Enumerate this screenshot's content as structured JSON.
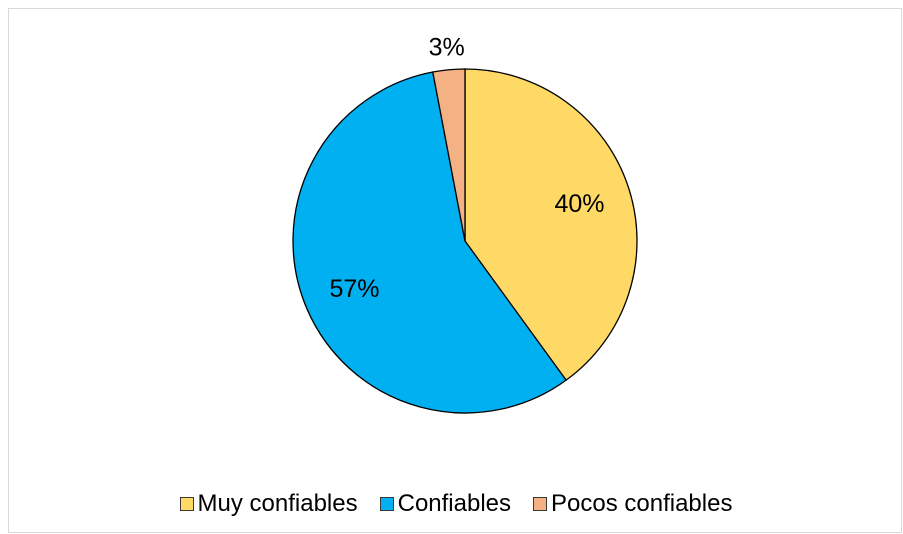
{
  "chart_data": {
    "type": "pie",
    "title": "",
    "series": [
      {
        "label": "Muy confiables",
        "value": 40,
        "display": "40%",
        "color": "#FFD966"
      },
      {
        "label": "Confiables",
        "value": 57,
        "display": "57%",
        "color": "#00B0F0"
      },
      {
        "label": "Pocos confiables",
        "value": 3,
        "display": "3%",
        "color": "#F4B183"
      }
    ],
    "start_angle": "top (12 o'clock), clockwise",
    "legend_position": "bottom",
    "slice_border_color": "#000000"
  }
}
